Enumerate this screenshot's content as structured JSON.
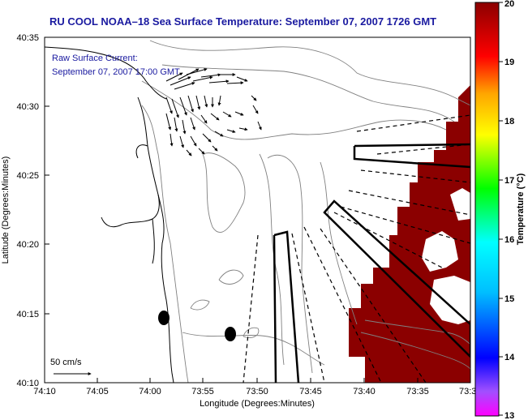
{
  "title": "RU COOL  NOAA–18  Sea Surface Temperature:  September 07, 2007 1726 GMT",
  "current_note": {
    "line1": "Raw Surface Current:",
    "line2": "September 07, 2007 17:00 GMT"
  },
  "scale_label": "50 cm/s",
  "x_axis": {
    "label": "Longitude (Degrees:Minutes)",
    "ticks": [
      "74:10",
      "74:05",
      "74:00",
      "73:55",
      "73:50",
      "73:45",
      "73:40",
      "73:35",
      "73:3"
    ]
  },
  "y_axis": {
    "label": "Latitude (Degrees:Minutes)",
    "ticks": [
      "40:35",
      "40:30",
      "40:25",
      "40:20",
      "40:15",
      "40:10"
    ]
  },
  "colorbar": {
    "label": "Temperature (°C)",
    "ticks": [
      "20",
      "19",
      "18",
      "17",
      "16",
      "15",
      "14",
      "13"
    ],
    "range": [
      13,
      20
    ]
  },
  "colors": {
    "title": "#1a1aa0",
    "sst_fill": "#8b0000",
    "land_contour": "#000000",
    "bathymetry": "#808080"
  }
}
